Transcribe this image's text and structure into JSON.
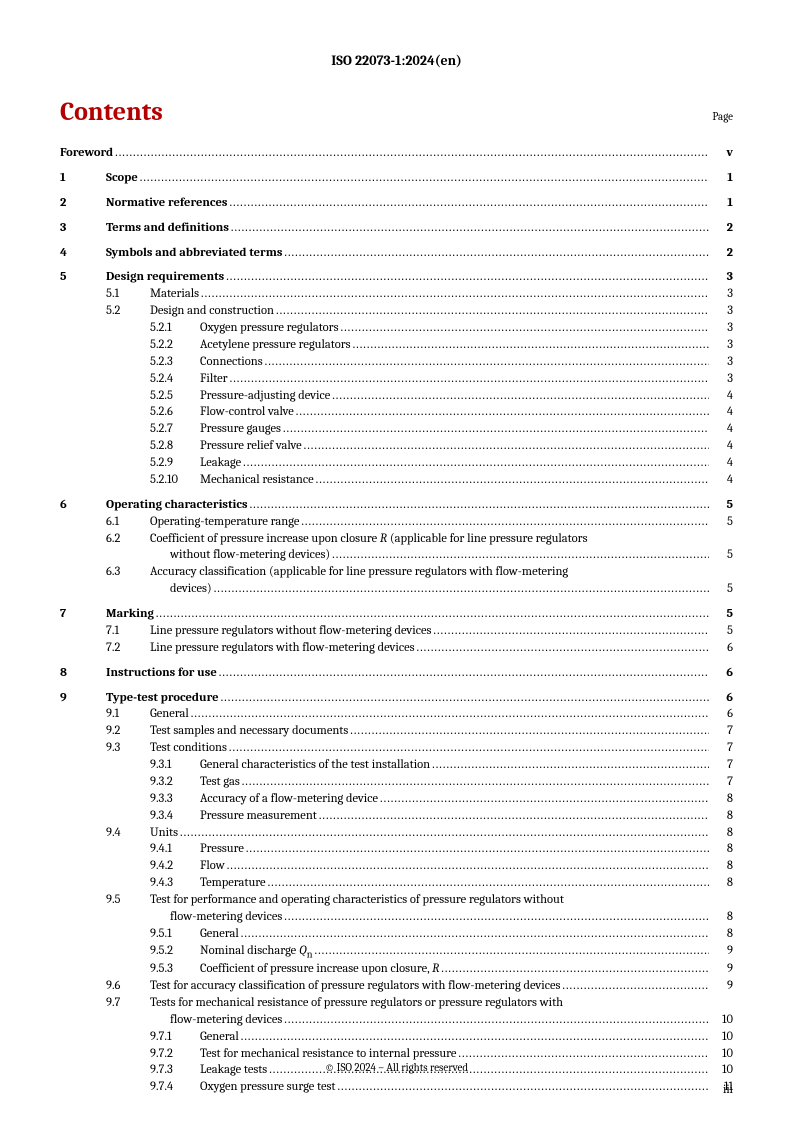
{
  "header": "ISO 22073-1:2024(en)",
  "contents_label": "Contents",
  "page_label": "Page",
  "footer_copy": "© ISO 2024 – All rights reserved",
  "footer_page": "iii",
  "entries": {
    "foreword": {
      "title": "Foreword",
      "page": "v"
    },
    "s1": {
      "num": "1",
      "title": "Scope",
      "page": "1"
    },
    "s2": {
      "num": "2",
      "title": "Normative references",
      "page": "1"
    },
    "s3": {
      "num": "3",
      "title": "Terms and definitions",
      "page": "2"
    },
    "s4": {
      "num": "4",
      "title": "Symbols and abbreviated terms",
      "page": "2"
    },
    "s5": {
      "num": "5",
      "title": "Design requirements",
      "page": "3"
    },
    "s5_1": {
      "num": "5.1",
      "title": "Materials",
      "page": "3"
    },
    "s5_2": {
      "num": "5.2",
      "title": "Design and construction",
      "page": "3"
    },
    "s5_2_1": {
      "num": "5.2.1",
      "title": "Oxygen pressure regulators",
      "page": "3"
    },
    "s5_2_2": {
      "num": "5.2.2",
      "title": "Acetylene pressure regulators",
      "page": "3"
    },
    "s5_2_3": {
      "num": "5.2.3",
      "title": "Connections",
      "page": "3"
    },
    "s5_2_4": {
      "num": "5.2.4",
      "title": "Filter",
      "page": "3"
    },
    "s5_2_5": {
      "num": "5.2.5",
      "title": "Pressure-adjusting device",
      "page": "4"
    },
    "s5_2_6": {
      "num": "5.2.6",
      "title": "Flow-control valve",
      "page": "4"
    },
    "s5_2_7": {
      "num": "5.2.7",
      "title": "Pressure gauges",
      "page": "4"
    },
    "s5_2_8": {
      "num": "5.2.8",
      "title": "Pressure relief valve",
      "page": "4"
    },
    "s5_2_9": {
      "num": "5.2.9",
      "title": "Leakage",
      "page": "4"
    },
    "s5_2_10": {
      "num": "5.2.10",
      "title": "Mechanical resistance",
      "page": "4"
    },
    "s6": {
      "num": "6",
      "title": "Operating characteristics",
      "page": "5"
    },
    "s6_1": {
      "num": "6.1",
      "title": "Operating-temperature range",
      "page": "5"
    },
    "s6_2": {
      "num": "6.2",
      "title_a": "Coefficient of pressure increase upon closure ",
      "title_i": "R",
      "title_b": " (applicable for line pressure regulators",
      "title_c": "without flow-metering devices)",
      "page": "5"
    },
    "s6_3": {
      "num": "6.3",
      "title_a": "Accuracy classification (applicable for line pressure regulators with flow-metering",
      "title_b": "devices)",
      "page": "5"
    },
    "s7": {
      "num": "7",
      "title": "Marking",
      "page": "5"
    },
    "s7_1": {
      "num": "7.1",
      "title": "Line pressure regulators without flow-metering devices",
      "page": "5"
    },
    "s7_2": {
      "num": "7.2",
      "title": "Line pressure regulators with flow-metering devices",
      "page": "6"
    },
    "s8": {
      "num": "8",
      "title": "Instructions for use",
      "page": "6"
    },
    "s9": {
      "num": "9",
      "title": "Type-test procedure",
      "page": "6"
    },
    "s9_1": {
      "num": "9.1",
      "title": "General",
      "page": "6"
    },
    "s9_2": {
      "num": "9.2",
      "title": "Test samples and necessary documents",
      "page": "7"
    },
    "s9_3": {
      "num": "9.3",
      "title": "Test conditions",
      "page": "7"
    },
    "s9_3_1": {
      "num": "9.3.1",
      "title": "General characteristics of the test installation",
      "page": "7"
    },
    "s9_3_2": {
      "num": "9.3.2",
      "title": "Test gas",
      "page": "7"
    },
    "s9_3_3": {
      "num": "9.3.3",
      "title": "Accuracy of a flow-metering device",
      "page": "8"
    },
    "s9_3_4": {
      "num": "9.3.4",
      "title": "Pressure measurement",
      "page": "8"
    },
    "s9_4": {
      "num": "9.4",
      "title": "Units",
      "page": "8"
    },
    "s9_4_1": {
      "num": "9.4.1",
      "title": "Pressure",
      "page": "8"
    },
    "s9_4_2": {
      "num": "9.4.2",
      "title": "Flow",
      "page": "8"
    },
    "s9_4_3": {
      "num": "9.4.3",
      "title": "Temperature",
      "page": "8"
    },
    "s9_5": {
      "num": "9.5",
      "title_a": "Test for performance and operating characteristics of pressure regulators without",
      "title_b": "flow-metering devices",
      "page": "8"
    },
    "s9_5_1": {
      "num": "9.5.1",
      "title": "General",
      "page": "8"
    },
    "s9_5_2": {
      "num": "9.5.2",
      "title_a": "Nominal discharge ",
      "title_i": "Q",
      "title_sub": "n",
      "page": "9"
    },
    "s9_5_3": {
      "num": "9.5.3",
      "title_a": "Coefficient of pressure increase upon closure, ",
      "title_i": "R",
      "page": "9"
    },
    "s9_6": {
      "num": "9.6",
      "title": "Test for accuracy classification of pressure regulators with flow-metering devices",
      "page": "9"
    },
    "s9_7": {
      "num": "9.7",
      "title_a": "Tests for mechanical resistance of pressure regulators or pressure regulators with",
      "title_b": "flow-metering devices",
      "page": "10"
    },
    "s9_7_1": {
      "num": "9.7.1",
      "title": "General",
      "page": "10"
    },
    "s9_7_2": {
      "num": "9.7.2",
      "title": "Test for mechanical resistance to internal pressure",
      "page": "10"
    },
    "s9_7_3": {
      "num": "9.7.3",
      "title": "Leakage tests",
      "page": "10"
    },
    "s9_7_4": {
      "num": "9.7.4",
      "title": "Oxygen pressure surge test",
      "page": "11"
    }
  }
}
